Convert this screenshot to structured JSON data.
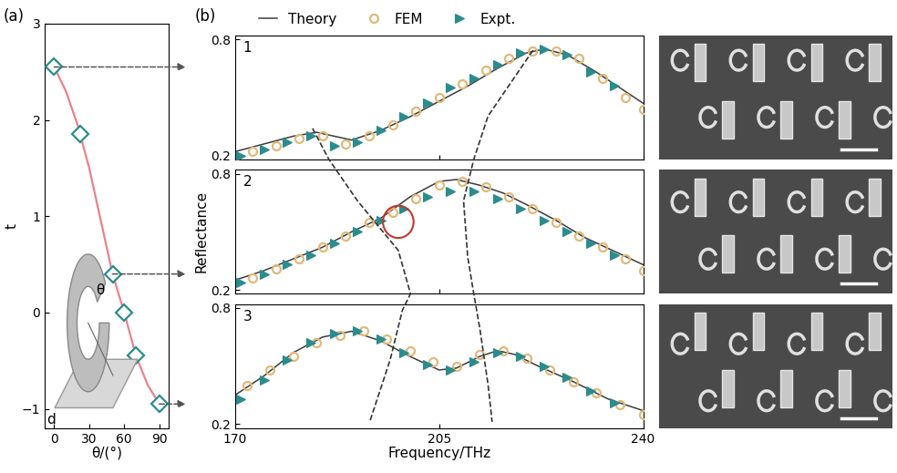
{
  "chart_data": [
    {
      "type": "line",
      "title": "(a)",
      "x_label": "θ/(°)",
      "y_label": "t",
      "annotations": [
        {
          "text": "θ"
        },
        {
          "text": "d"
        }
      ],
      "xlim": [
        -8,
        98
      ],
      "xticks": [
        0,
        30,
        60,
        90
      ],
      "ylim": [
        -1.2,
        3
      ],
      "yticks": [
        {
          "value": -1,
          "label": "−1"
        },
        0,
        1,
        2,
        3
      ],
      "series": [
        {
          "type": "line",
          "color": "#e8828a",
          "line_style": "solid",
          "x": [
            0,
            10,
            20,
            30,
            40,
            50,
            60,
            70,
            80,
            90
          ],
          "values": [
            2.55,
            2.3,
            1.95,
            1.5,
            0.95,
            0.4,
            0.0,
            -0.45,
            -0.75,
            -0.95
          ]
        },
        {
          "type": "scatter",
          "color": "#2a8c8c",
          "marker": "diamond",
          "x": [
            0,
            22,
            50,
            60,
            70,
            90
          ],
          "values": [
            2.55,
            1.85,
            0.4,
            0.0,
            -0.45,
            -0.95
          ]
        }
      ]
    },
    {
      "type": "line",
      "title": "(b)",
      "annotations": [
        {
          "text": "1"
        }
      ],
      "legend": "upper center",
      "tick_labels": "y",
      "xlim": [
        170,
        240
      ],
      "xticks": [
        170,
        205,
        240
      ],
      "ylim": [
        0.18,
        0.82
      ],
      "yticks": [
        0.2,
        0.8
      ],
      "series": [
        {
          "name": "Theory",
          "type": "line",
          "color": "#3c3c3c",
          "line_style": "solid",
          "x": [
            170,
            175,
            180,
            184,
            190,
            195,
            200,
            205,
            210,
            215,
            220,
            223,
            227,
            232,
            236,
            240
          ],
          "values": [
            0.22,
            0.26,
            0.3,
            0.32,
            0.28,
            0.33,
            0.4,
            0.48,
            0.56,
            0.65,
            0.73,
            0.75,
            0.72,
            0.63,
            0.55,
            0.47
          ]
        },
        {
          "name": "FEM",
          "type": "scatter",
          "color": "#e0b97a",
          "marker": "circle",
          "x": [
            173,
            177,
            181,
            185,
            189,
            193,
            197,
            201,
            205,
            209,
            213,
            217,
            221,
            225,
            229,
            233,
            237,
            240
          ],
          "values": [
            0.22,
            0.25,
            0.29,
            0.3,
            0.26,
            0.3,
            0.36,
            0.43,
            0.5,
            0.57,
            0.64,
            0.7,
            0.74,
            0.74,
            0.7,
            0.6,
            0.5,
            0.44
          ]
        },
        {
          "name": "Expt.",
          "type": "scatter",
          "color": "#2a8c8c",
          "marker": "triangle",
          "x": [
            171,
            175,
            179,
            183,
            187,
            191,
            195,
            199,
            203,
            207,
            211,
            215,
            219,
            223,
            227,
            231,
            235
          ],
          "values": [
            0.2,
            0.23,
            0.27,
            0.3,
            0.25,
            0.27,
            0.33,
            0.4,
            0.47,
            0.55,
            0.6,
            0.67,
            0.73,
            0.75,
            0.72,
            0.63,
            0.56
          ]
        }
      ]
    },
    {
      "type": "line",
      "annotations": [
        {
          "text": "2"
        }
      ],
      "y_label": "Reflectance",
      "tick_labels": "y",
      "xlim": [
        170,
        240
      ],
      "xticks": [
        170,
        205,
        240
      ],
      "ylim": [
        0.18,
        0.82
      ],
      "yticks": [
        0.2,
        0.8
      ],
      "series": [
        {
          "name": "Theory",
          "type": "line",
          "color": "#3c3c3c",
          "line_style": "solid",
          "x": [
            170,
            175,
            180,
            185,
            190,
            195,
            200,
            205,
            208,
            212,
            216,
            220,
            225,
            230,
            235,
            240
          ],
          "values": [
            0.25,
            0.3,
            0.36,
            0.42,
            0.5,
            0.57,
            0.68,
            0.76,
            0.77,
            0.74,
            0.7,
            0.64,
            0.56,
            0.47,
            0.4,
            0.33
          ]
        },
        {
          "name": "FEM",
          "type": "scatter",
          "color": "#e0b97a",
          "marker": "circle",
          "x": [
            173,
            177,
            181,
            185,
            189,
            193,
            197,
            201,
            205,
            209,
            213,
            217,
            221,
            225,
            229,
            233,
            237,
            240
          ],
          "values": [
            0.26,
            0.31,
            0.36,
            0.42,
            0.48,
            0.55,
            0.6,
            0.67,
            0.74,
            0.76,
            0.73,
            0.68,
            0.62,
            0.55,
            0.48,
            0.42,
            0.36,
            0.3
          ]
        },
        {
          "name": "Expt.",
          "type": "scatter",
          "color": "#2a8c8c",
          "marker": "triangle",
          "x": [
            171,
            175,
            179,
            183,
            187,
            191,
            195,
            199,
            203,
            207,
            211,
            215,
            219,
            223,
            227,
            231,
            235
          ],
          "values": [
            0.24,
            0.28,
            0.33,
            0.38,
            0.44,
            0.5,
            0.56,
            0.62,
            0.68,
            0.71,
            0.71,
            0.67,
            0.62,
            0.56,
            0.5,
            0.44,
            0.38
          ]
        }
      ]
    },
    {
      "type": "line",
      "annotations": [
        {
          "text": "3"
        }
      ],
      "x_label": "Frequency/THz",
      "xlim": [
        170,
        240
      ],
      "xticks": [
        170,
        205,
        240
      ],
      "ylim": [
        0.18,
        0.82
      ],
      "yticks": [
        0.2,
        0.8
      ],
      "series": [
        {
          "name": "Theory",
          "type": "line",
          "color": "#3c3c3c",
          "line_style": "solid",
          "x": [
            170,
            175,
            180,
            185,
            190,
            195,
            200,
            205,
            208,
            212,
            215,
            218,
            222,
            228,
            234,
            240
          ],
          "values": [
            0.35,
            0.45,
            0.57,
            0.65,
            0.68,
            0.63,
            0.55,
            0.48,
            0.49,
            0.55,
            0.58,
            0.56,
            0.5,
            0.42,
            0.33,
            0.27
          ]
        },
        {
          "name": "FEM",
          "type": "scatter",
          "color": "#e0b97a",
          "marker": "circle",
          "x": [
            172,
            176,
            180,
            184,
            188,
            192,
            196,
            200,
            204,
            208,
            212,
            216,
            220,
            224,
            228,
            232,
            236,
            240
          ],
          "values": [
            0.4,
            0.48,
            0.55,
            0.62,
            0.66,
            0.68,
            0.64,
            0.58,
            0.52,
            0.5,
            0.56,
            0.58,
            0.54,
            0.48,
            0.42,
            0.36,
            0.3,
            0.25
          ]
        },
        {
          "name": "Expt.",
          "type": "scatter",
          "color": "#2a8c8c",
          "marker": "triangle",
          "x": [
            171,
            175,
            179,
            183,
            187,
            191,
            195,
            199,
            203,
            207,
            211,
            215,
            219,
            223,
            227,
            231,
            235
          ],
          "values": [
            0.33,
            0.43,
            0.53,
            0.62,
            0.67,
            0.68,
            0.64,
            0.57,
            0.51,
            0.48,
            0.52,
            0.57,
            0.55,
            0.5,
            0.44,
            0.37,
            0.31
          ]
        }
      ]
    }
  ]
}
